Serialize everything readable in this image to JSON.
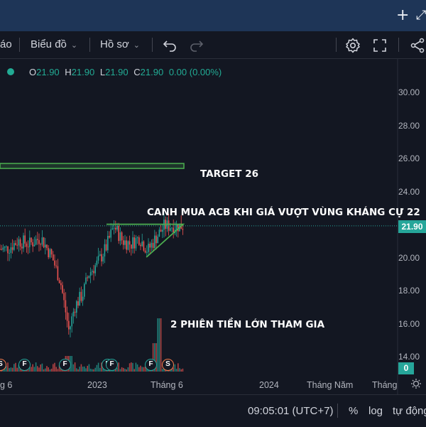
{
  "topbar": {
    "add_label": "+",
    "expand_label": "⤢"
  },
  "toolbar": {
    "partial_label": "áo",
    "chart_menu_label": "Biểu đồ",
    "profile_menu_label": "Hồ sơ",
    "undo_icon": "undo-icon",
    "redo_icon": "redo-icon",
    "settings_icon": "gear-icon",
    "fullscreen_icon": "fullscreen-icon",
    "share_icon": "share-icon"
  },
  "legend": {
    "o_key": "O",
    "o_val": "21.90",
    "h_key": "H",
    "h_val": "21.90",
    "l_key": "L",
    "l_val": "21.90",
    "c_key": "C",
    "c_val": "21.90",
    "change": "0.00 (0.00%)"
  },
  "price_axis": {
    "ticks": [
      "30.00",
      "28.00",
      "26.00",
      "24.00",
      "20.00",
      "18.00",
      "16.00",
      "14.00"
    ],
    "current_price": "21.90",
    "volume_label": "0"
  },
  "time_axis": {
    "labels": [
      "g 6",
      "2023",
      "Tháng 6",
      "2024",
      "Tháng Năm",
      "Tháng"
    ]
  },
  "annotations": {
    "target": "TARGET 26",
    "buy_note": "CANH MUA ACB KHI GIÁ VƯỢT VÙNG KHÁNG CỰ 22",
    "volume_note": "2 PHIÊN TIỀN LỚN THAM GIA"
  },
  "markers": [
    "F",
    "F",
    "F",
    "F",
    "F",
    "S"
  ],
  "statusbar": {
    "time": "09:05:01 (UTC+7)",
    "percent": "%",
    "log": "log",
    "auto": "tự động"
  },
  "colors": {
    "up": "#26a69a",
    "down": "#ef5350",
    "drawing": "#4caf50",
    "background": "#131722",
    "header": "#1e3557"
  },
  "chart_data": {
    "type": "candlestick",
    "x_range": [
      "2022-06",
      "2024-06"
    ],
    "y_range": [
      13,
      31
    ],
    "last_close": 21.9,
    "series": [
      {
        "name": "price",
        "values": [
          [
            2022.42,
            20.5
          ],
          [
            2022.5,
            21.0
          ],
          [
            2022.58,
            20.8
          ],
          [
            2022.66,
            21.2
          ],
          [
            2022.74,
            20.0
          ],
          [
            2022.8,
            18.5
          ],
          [
            2022.86,
            15.5
          ],
          [
            2022.9,
            17.0
          ],
          [
            2022.96,
            17.8
          ],
          [
            2023.0,
            19.0
          ],
          [
            2023.06,
            19.6
          ],
          [
            2023.12,
            20.5
          ],
          [
            2023.18,
            21.9
          ],
          [
            2023.24,
            21.0
          ],
          [
            2023.3,
            20.8
          ],
          [
            2023.36,
            21.2
          ],
          [
            2023.42,
            20.4
          ],
          [
            2023.48,
            21.2
          ],
          [
            2023.54,
            21.9
          ]
        ]
      }
    ],
    "drawings": {
      "target_zone": [
        25.4,
        25.6
      ],
      "resistance": 22.0,
      "rising_support": [
        [
          2023.35,
          20.0
        ],
        [
          2023.54,
          22.0
        ]
      ]
    }
  }
}
